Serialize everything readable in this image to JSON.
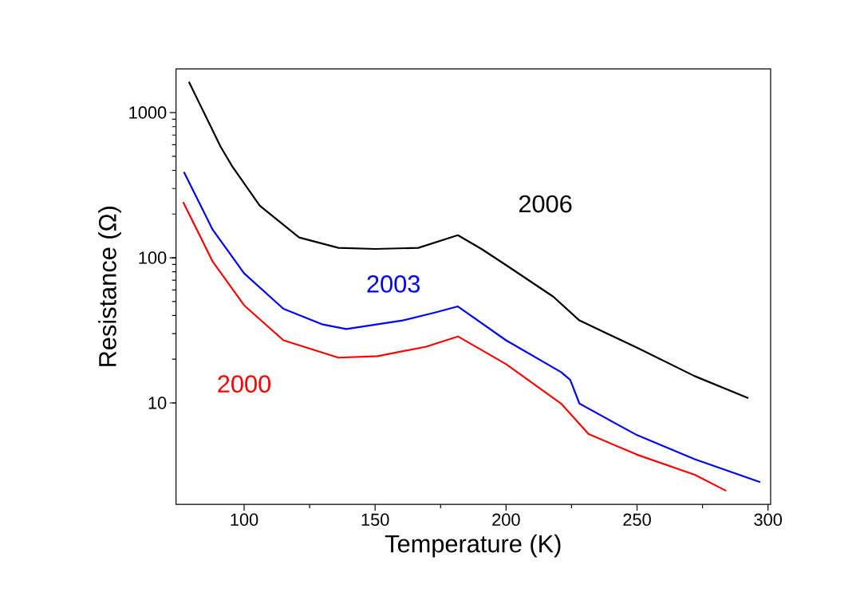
{
  "chart_data": {
    "type": "line",
    "xlabel": "Temperature (K)",
    "ylabel": "Resistance  (Ω)",
    "log": "y",
    "xlim": [
      74,
      301
    ],
    "ylim": [
      2,
      2000
    ],
    "xticks": [
      100,
      150,
      200,
      250,
      300
    ],
    "yticks": [
      10,
      100,
      1000
    ],
    "grid": false,
    "legend": false,
    "marker": "none",
    "line_style": "solid",
    "series": [
      {
        "name": "2006",
        "color": "#000000",
        "x": [
          78.9,
          91,
          95.5,
          106,
          121,
          136,
          150,
          166.5,
          181.6,
          190.6,
          200,
          218,
          228,
          250,
          272,
          292.5
        ],
        "values": [
          1630,
          583,
          425,
          228,
          138,
          117,
          115,
          117,
          143,
          115,
          89,
          54,
          37,
          24,
          15.3,
          10.8
        ]
      },
      {
        "name": "2003",
        "color": "#0000ff",
        "x": [
          77,
          88,
          100,
          115,
          130,
          139,
          160.5,
          172.5,
          181.6,
          200,
          221,
          224.5,
          228,
          239,
          250,
          272,
          297
        ],
        "values": [
          390,
          156,
          78,
          44.5,
          34.7,
          32.3,
          37,
          41.8,
          46.2,
          27,
          16.3,
          14.4,
          9.9,
          7.7,
          6.0,
          4.1,
          2.85
        ]
      },
      {
        "name": "2000",
        "color": "#ff0000",
        "x": [
          76.7,
          88,
          100,
          115,
          136,
          151,
          169.5,
          181.6,
          200,
          221,
          231.5,
          250,
          272,
          284
        ],
        "values": [
          242,
          94,
          47,
          27,
          20.5,
          21,
          24.4,
          28.7,
          18.5,
          9.9,
          6.1,
          4.4,
          3.2,
          2.48
        ]
      }
    ]
  }
}
